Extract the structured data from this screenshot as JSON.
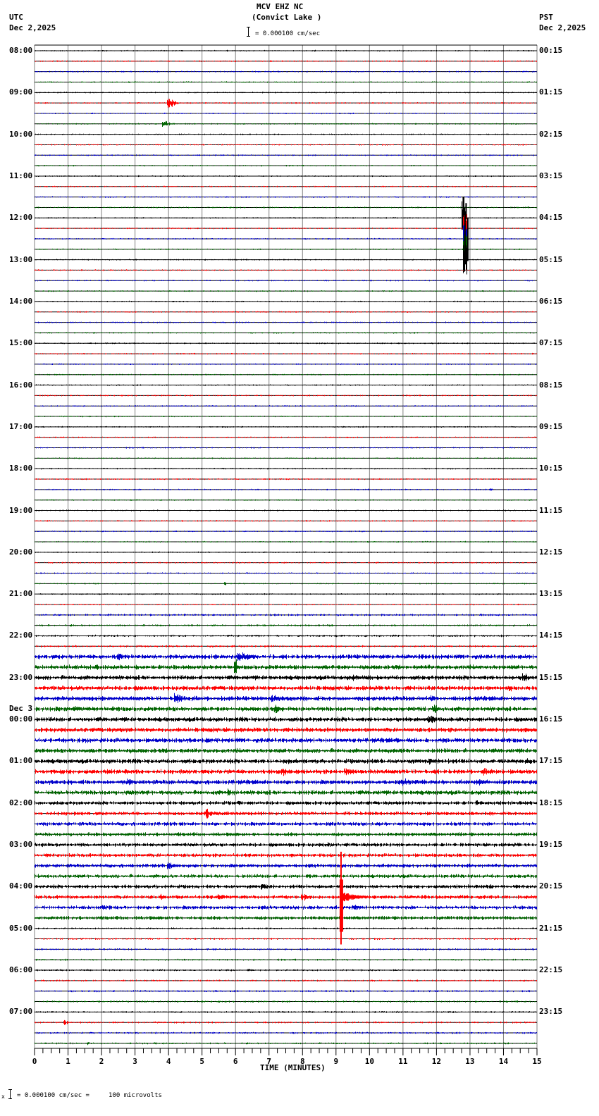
{
  "header": {
    "station": "MCV EHZ NC",
    "location": "(Convict Lake )",
    "scale_text": "= 0.000100 cm/sec",
    "left_tz": "UTC",
    "left_date": "Dec 2,2025",
    "right_tz": "PST",
    "right_date": "Dec 2,2025"
  },
  "footer": {
    "scale_text": "= 0.000100 cm/sec =     100 microvolts",
    "marker": "x"
  },
  "chart_data": {
    "type": "seismogram-helicorder",
    "title": "MCV EHZ NC (Convict Lake )",
    "xlabel": "TIME (MINUTES)",
    "xlim": [
      0,
      15
    ],
    "x_ticks": [
      "0",
      "1",
      "2",
      "3",
      "4",
      "5",
      "6",
      "7",
      "8",
      "9",
      "10",
      "11",
      "12",
      "13",
      "14",
      "15"
    ],
    "minor_ticks_per_minute": 4,
    "grid": "vertical lines every minute",
    "traces_per_hour": 4,
    "trace_minutes": 15,
    "trace_colors": [
      "#000000",
      "#ff0000",
      "#0000cc",
      "#006400"
    ],
    "left_labels": [
      {
        "row": 0,
        "text": "08:00"
      },
      {
        "row": 4,
        "text": "09:00"
      },
      {
        "row": 8,
        "text": "10:00"
      },
      {
        "row": 12,
        "text": "11:00"
      },
      {
        "row": 16,
        "text": "12:00"
      },
      {
        "row": 20,
        "text": "13:00"
      },
      {
        "row": 24,
        "text": "14:00"
      },
      {
        "row": 28,
        "text": "15:00"
      },
      {
        "row": 32,
        "text": "16:00"
      },
      {
        "row": 36,
        "text": "17:00"
      },
      {
        "row": 40,
        "text": "18:00"
      },
      {
        "row": 44,
        "text": "19:00"
      },
      {
        "row": 48,
        "text": "20:00"
      },
      {
        "row": 52,
        "text": "21:00"
      },
      {
        "row": 56,
        "text": "22:00"
      },
      {
        "row": 60,
        "text": "23:00"
      },
      {
        "row": 64,
        "text": "00:00",
        "date": "Dec 3"
      },
      {
        "row": 68,
        "text": "01:00"
      },
      {
        "row": 72,
        "text": "02:00"
      },
      {
        "row": 76,
        "text": "03:00"
      },
      {
        "row": 80,
        "text": "04:00"
      },
      {
        "row": 84,
        "text": "05:00"
      },
      {
        "row": 88,
        "text": "06:00"
      },
      {
        "row": 92,
        "text": "07:00"
      }
    ],
    "right_labels": [
      {
        "row": 0,
        "text": "00:15"
      },
      {
        "row": 4,
        "text": "01:15"
      },
      {
        "row": 8,
        "text": "02:15"
      },
      {
        "row": 12,
        "text": "03:15"
      },
      {
        "row": 16,
        "text": "04:15"
      },
      {
        "row": 20,
        "text": "05:15"
      },
      {
        "row": 24,
        "text": "06:15"
      },
      {
        "row": 28,
        "text": "07:15"
      },
      {
        "row": 32,
        "text": "08:15"
      },
      {
        "row": 36,
        "text": "09:15"
      },
      {
        "row": 40,
        "text": "10:15"
      },
      {
        "row": 44,
        "text": "11:15"
      },
      {
        "row": 48,
        "text": "12:15"
      },
      {
        "row": 52,
        "text": "13:15"
      },
      {
        "row": 56,
        "text": "14:15"
      },
      {
        "row": 60,
        "text": "15:15"
      },
      {
        "row": 64,
        "text": "16:15"
      },
      {
        "row": 68,
        "text": "17:15"
      },
      {
        "row": 72,
        "text": "18:15"
      },
      {
        "row": 76,
        "text": "19:15"
      },
      {
        "row": 80,
        "text": "20:15"
      },
      {
        "row": 84,
        "text": "21:15"
      },
      {
        "row": 88,
        "text": "22:15"
      },
      {
        "row": 92,
        "text": "23:15"
      }
    ],
    "noise_levels": [
      {
        "rows": [
          0,
          53
        ],
        "amplitude": 1.0
      },
      {
        "rows": [
          54,
          57
        ],
        "amplitude": 1.5
      },
      {
        "rows": [
          58,
          71
        ],
        "amplitude": 3.2
      },
      {
        "rows": [
          72,
          83
        ],
        "amplitude": 2.6
      },
      {
        "rows": [
          84,
          95
        ],
        "amplitude": 1.3
      }
    ],
    "events": [
      {
        "row": 5,
        "minute": 4.0,
        "amplitude": 9,
        "duration": 0.4
      },
      {
        "row": 7,
        "minute": 3.85,
        "amplitude": 7,
        "duration": 0.35
      },
      {
        "row": 16,
        "minute": 12.8,
        "amplitude": 30,
        "duration": 0.06,
        "spike": true
      },
      {
        "row": 17,
        "minute": 12.85,
        "amplitude": 22,
        "duration": 0.06,
        "spike": true
      },
      {
        "row": 18,
        "minute": 12.85,
        "amplitude": 22,
        "duration": 0.06,
        "spike": true
      },
      {
        "row": 19,
        "minute": 12.85,
        "amplitude": 22,
        "duration": 0.06,
        "spike": true
      },
      {
        "row": 20,
        "minute": 12.85,
        "amplitude": 22,
        "duration": 0.06,
        "spike": true
      },
      {
        "row": 42,
        "minute": 13.6,
        "amplitude": 3,
        "duration": 0.2
      },
      {
        "row": 51,
        "minute": 5.7,
        "amplitude": 3,
        "duration": 0.15
      },
      {
        "row": 58,
        "minute": 2.5,
        "amplitude": 6,
        "duration": 0.7
      },
      {
        "row": 58,
        "minute": 6.1,
        "amplitude": 8,
        "duration": 1.0
      },
      {
        "row": 59,
        "minute": 6.0,
        "amplitude": 14,
        "duration": 0.15
      },
      {
        "row": 59,
        "minute": 3.8,
        "amplitude": 4,
        "duration": 0.5
      },
      {
        "row": 60,
        "minute": 9.5,
        "amplitude": 5,
        "duration": 0.8
      },
      {
        "row": 60,
        "minute": 14.6,
        "amplitude": 7,
        "duration": 0.4
      },
      {
        "row": 61,
        "minute": 14.2,
        "amplitude": 5,
        "duration": 0.6
      },
      {
        "row": 62,
        "minute": 4.2,
        "amplitude": 8,
        "duration": 0.8
      },
      {
        "row": 62,
        "minute": 7.1,
        "amplitude": 7,
        "duration": 0.9
      },
      {
        "row": 62,
        "minute": 11.8,
        "amplitude": 6,
        "duration": 0.5
      },
      {
        "row": 63,
        "minute": 1.2,
        "amplitude": 6,
        "duration": 0.6
      },
      {
        "row": 63,
        "minute": 7.2,
        "amplitude": 6,
        "duration": 0.8
      },
      {
        "row": 63,
        "minute": 11.9,
        "amplitude": 8,
        "duration": 0.4
      },
      {
        "row": 64,
        "minute": 11.8,
        "amplitude": 7,
        "duration": 0.6
      },
      {
        "row": 66,
        "minute": 5.2,
        "amplitude": 5,
        "duration": 0.3
      },
      {
        "row": 66,
        "minute": 9.2,
        "amplitude": 4,
        "duration": 0.6
      },
      {
        "row": 66,
        "minute": 10.8,
        "amplitude": 4,
        "duration": 0.8
      },
      {
        "row": 66,
        "minute": 12.6,
        "amplitude": 4,
        "duration": 0.5
      },
      {
        "row": 67,
        "minute": 10.6,
        "amplitude": 4,
        "duration": 0.5
      },
      {
        "row": 68,
        "minute": 7.5,
        "amplitude": 5,
        "duration": 0.5
      },
      {
        "row": 68,
        "minute": 11.8,
        "amplitude": 5,
        "duration": 0.5
      },
      {
        "row": 68,
        "minute": 14.7,
        "amplitude": 6,
        "duration": 0.4
      },
      {
        "row": 69,
        "minute": 7.4,
        "amplitude": 7,
        "duration": 0.6
      },
      {
        "row": 69,
        "minute": 9.3,
        "amplitude": 6,
        "duration": 0.8
      },
      {
        "row": 69,
        "minute": 13.4,
        "amplitude": 6,
        "duration": 0.6
      },
      {
        "row": 70,
        "minute": 2.8,
        "amplitude": 6,
        "duration": 0.4
      },
      {
        "row": 70,
        "minute": 11.0,
        "amplitude": 6,
        "duration": 1.0
      },
      {
        "row": 70,
        "minute": 13.2,
        "amplitude": 6,
        "duration": 0.6
      },
      {
        "row": 71,
        "minute": 2.8,
        "amplitude": 6,
        "duration": 0.6
      },
      {
        "row": 71,
        "minute": 5.8,
        "amplitude": 6,
        "duration": 0.2
      },
      {
        "row": 72,
        "minute": 6.1,
        "amplitude": 5,
        "duration": 0.3
      },
      {
        "row": 72,
        "minute": 13.2,
        "amplitude": 5,
        "duration": 0.4
      },
      {
        "row": 73,
        "minute": 5.1,
        "amplitude": 8,
        "duration": 0.8
      },
      {
        "row": 73,
        "minute": 10.2,
        "amplitude": 4,
        "duration": 0.3
      },
      {
        "row": 76,
        "minute": 8.8,
        "amplitude": 4,
        "duration": 0.4
      },
      {
        "row": 77,
        "minute": 8.6,
        "amplitude": 3,
        "duration": 0.5
      },
      {
        "row": 78,
        "minute": 4.0,
        "amplitude": 6,
        "duration": 0.7
      },
      {
        "row": 78,
        "minute": 13.0,
        "amplitude": 4,
        "duration": 0.3
      },
      {
        "row": 77,
        "minute": 9.15,
        "amplitude": 0,
        "duration": 0.1,
        "big_red": true
      },
      {
        "row": 80,
        "minute": 6.8,
        "amplitude": 5,
        "duration": 0.7
      },
      {
        "row": 80,
        "minute": 13.6,
        "amplitude": 4,
        "duration": 0.4
      },
      {
        "row": 81,
        "minute": 3.8,
        "amplitude": 5,
        "duration": 0.5
      },
      {
        "row": 81,
        "minute": 5.5,
        "amplitude": 5,
        "duration": 0.8
      },
      {
        "row": 81,
        "minute": 8.0,
        "amplitude": 6,
        "duration": 0.6
      },
      {
        "row": 82,
        "minute": 2.0,
        "amplitude": 4,
        "duration": 0.6
      },
      {
        "row": 82,
        "minute": 9.5,
        "amplitude": 5,
        "duration": 0.8
      },
      {
        "row": 88,
        "minute": 6.4,
        "amplitude": 3,
        "duration": 0.2
      },
      {
        "row": 93,
        "minute": 0.9,
        "amplitude": 5,
        "duration": 0.2
      },
      {
        "row": 95,
        "minute": 1.6,
        "amplitude": 3,
        "duration": 0.3
      }
    ],
    "large_event": {
      "row_start": 77,
      "row_end": 85,
      "minute": 9.15,
      "color": "#ff0000",
      "description": "large red trace spanning several rows near 04:00 UTC"
    }
  },
  "axis": {
    "xlabel": "TIME (MINUTES)",
    "ticks": [
      "0",
      "1",
      "2",
      "3",
      "4",
      "5",
      "6",
      "7",
      "8",
      "9",
      "10",
      "11",
      "12",
      "13",
      "14",
      "15"
    ]
  },
  "colors": {
    "grid": "#808080",
    "frame": "#000000",
    "traces": [
      "#000000",
      "#ff0000",
      "#0000cc",
      "#006400"
    ]
  }
}
